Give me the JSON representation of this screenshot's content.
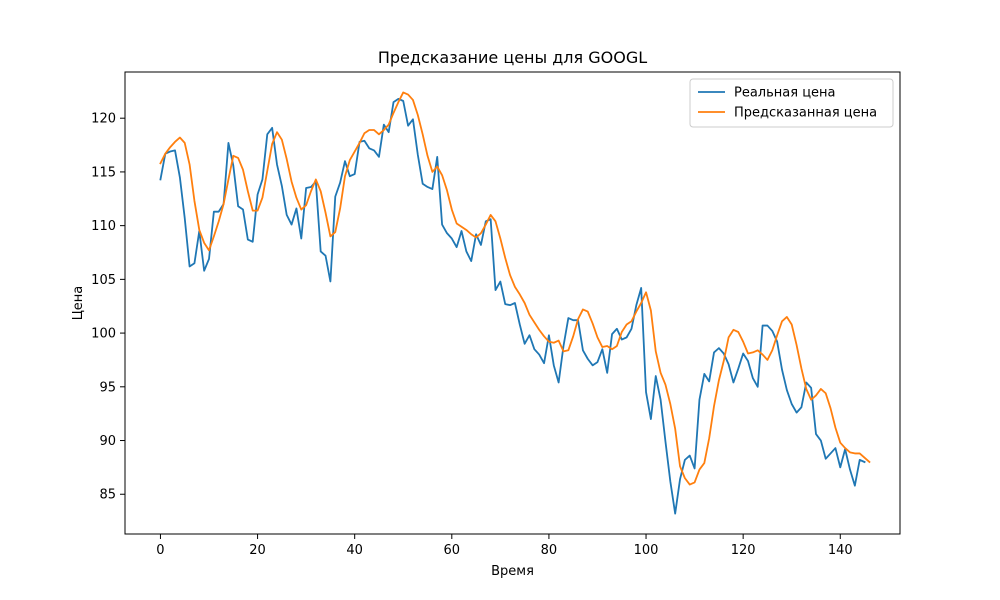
{
  "chart_data": {
    "type": "line",
    "title": "Предсказание цены для GOOGL",
    "xlabel": "Время",
    "ylabel": "Цена",
    "xlim": [
      -7.3,
      152.3
    ],
    "ylim": [
      81.3,
      124.3
    ],
    "xticks": [
      0,
      20,
      40,
      60,
      80,
      100,
      120,
      140
    ],
    "yticks": [
      85,
      90,
      95,
      100,
      105,
      110,
      115,
      120
    ],
    "grid": false,
    "legend_position": "top-right",
    "series": [
      {
        "name": "Реальная цена",
        "color": "#1f77b4",
        "values": [
          114.3,
          116.7,
          116.9,
          117.0,
          114.5,
          110.7,
          106.2,
          106.5,
          109.5,
          105.8,
          106.9,
          111.3,
          111.3,
          112.0,
          117.7,
          115.6,
          111.8,
          111.5,
          108.7,
          108.5,
          112.9,
          114.3,
          118.5,
          119.1,
          115.7,
          113.7,
          111.0,
          110.1,
          111.6,
          108.8,
          113.5,
          113.6,
          114.1,
          107.6,
          107.2,
          104.8,
          112.7,
          114.0,
          116.0,
          114.6,
          114.8,
          117.8,
          117.9,
          117.2,
          117.0,
          116.4,
          119.4,
          118.7,
          121.5,
          121.8,
          121.6,
          119.3,
          119.9,
          116.6,
          113.9,
          113.6,
          113.4,
          116.4,
          110.1,
          109.3,
          108.8,
          108.0,
          109.5,
          107.6,
          106.7,
          109.2,
          108.2,
          110.4,
          110.6,
          104.0,
          104.8,
          102.7,
          102.6,
          102.8,
          100.8,
          99.0,
          99.8,
          98.5,
          98.0,
          97.2,
          99.8,
          97.0,
          95.4,
          98.8,
          101.4,
          101.2,
          101.2,
          98.4,
          97.6,
          97.0,
          97.3,
          98.5,
          96.3,
          99.9,
          100.4,
          99.4,
          99.6,
          100.4,
          102.6,
          104.2,
          94.5,
          92.0,
          96.0,
          93.8,
          89.9,
          86.2,
          83.2,
          86.4,
          88.2,
          88.6,
          87.4,
          93.8,
          96.2,
          95.5,
          98.2,
          98.6,
          98.1,
          97.1,
          95.4,
          96.7,
          98.1,
          97.4,
          95.8,
          95.0,
          100.7,
          100.7,
          100.2,
          99.2,
          96.6,
          94.7,
          93.4,
          92.6,
          93.1,
          95.4,
          94.9,
          90.6,
          90.0,
          88.3,
          88.8,
          89.3,
          87.5,
          89.2,
          87.3,
          85.8,
          88.2,
          88.0
        ]
      },
      {
        "name": "Предсказанная цена",
        "color": "#ff7f0e",
        "values": [
          115.8,
          116.7,
          117.3,
          117.8,
          118.2,
          117.7,
          115.7,
          112.3,
          109.6,
          108.4,
          107.7,
          109.0,
          110.4,
          112.0,
          114.3,
          116.5,
          116.3,
          115.2,
          113.2,
          111.4,
          111.4,
          112.6,
          115.1,
          117.6,
          118.7,
          118.0,
          116.2,
          114.1,
          112.6,
          111.5,
          111.9,
          113.2,
          114.3,
          113.2,
          111.2,
          109.0,
          109.4,
          111.6,
          114.6,
          116.1,
          116.9,
          117.7,
          118.6,
          118.9,
          118.9,
          118.5,
          118.9,
          119.4,
          120.5,
          121.5,
          122.4,
          122.2,
          121.7,
          120.3,
          118.5,
          116.5,
          115.0,
          115.5,
          114.7,
          113.3,
          111.5,
          110.2,
          109.9,
          109.6,
          109.2,
          108.9,
          109.3,
          110.1,
          111.0,
          110.4,
          108.8,
          107.0,
          105.4,
          104.3,
          103.6,
          102.8,
          101.7,
          101.0,
          100.3,
          99.7,
          99.2,
          99.1,
          99.3,
          98.3,
          98.4,
          99.7,
          101.3,
          102.2,
          102.0,
          100.9,
          99.6,
          98.7,
          98.8,
          98.5,
          98.8,
          100.1,
          100.8,
          101.1,
          102.0,
          102.8,
          103.8,
          102.1,
          98.3,
          96.3,
          95.2,
          93.4,
          91.1,
          87.6,
          86.5,
          85.9,
          86.1,
          87.3,
          87.9,
          90.2,
          93.2,
          95.6,
          97.4,
          99.6,
          100.3,
          100.1,
          99.2,
          98.1,
          98.2,
          98.4,
          98.0,
          97.5,
          98.4,
          99.8,
          101.1,
          101.5,
          100.8,
          98.9,
          96.7,
          94.8,
          93.8,
          94.2,
          94.8,
          94.4,
          93.0,
          91.2,
          89.8,
          89.3,
          88.9,
          88.8,
          88.8,
          88.4,
          88.0
        ]
      }
    ]
  }
}
